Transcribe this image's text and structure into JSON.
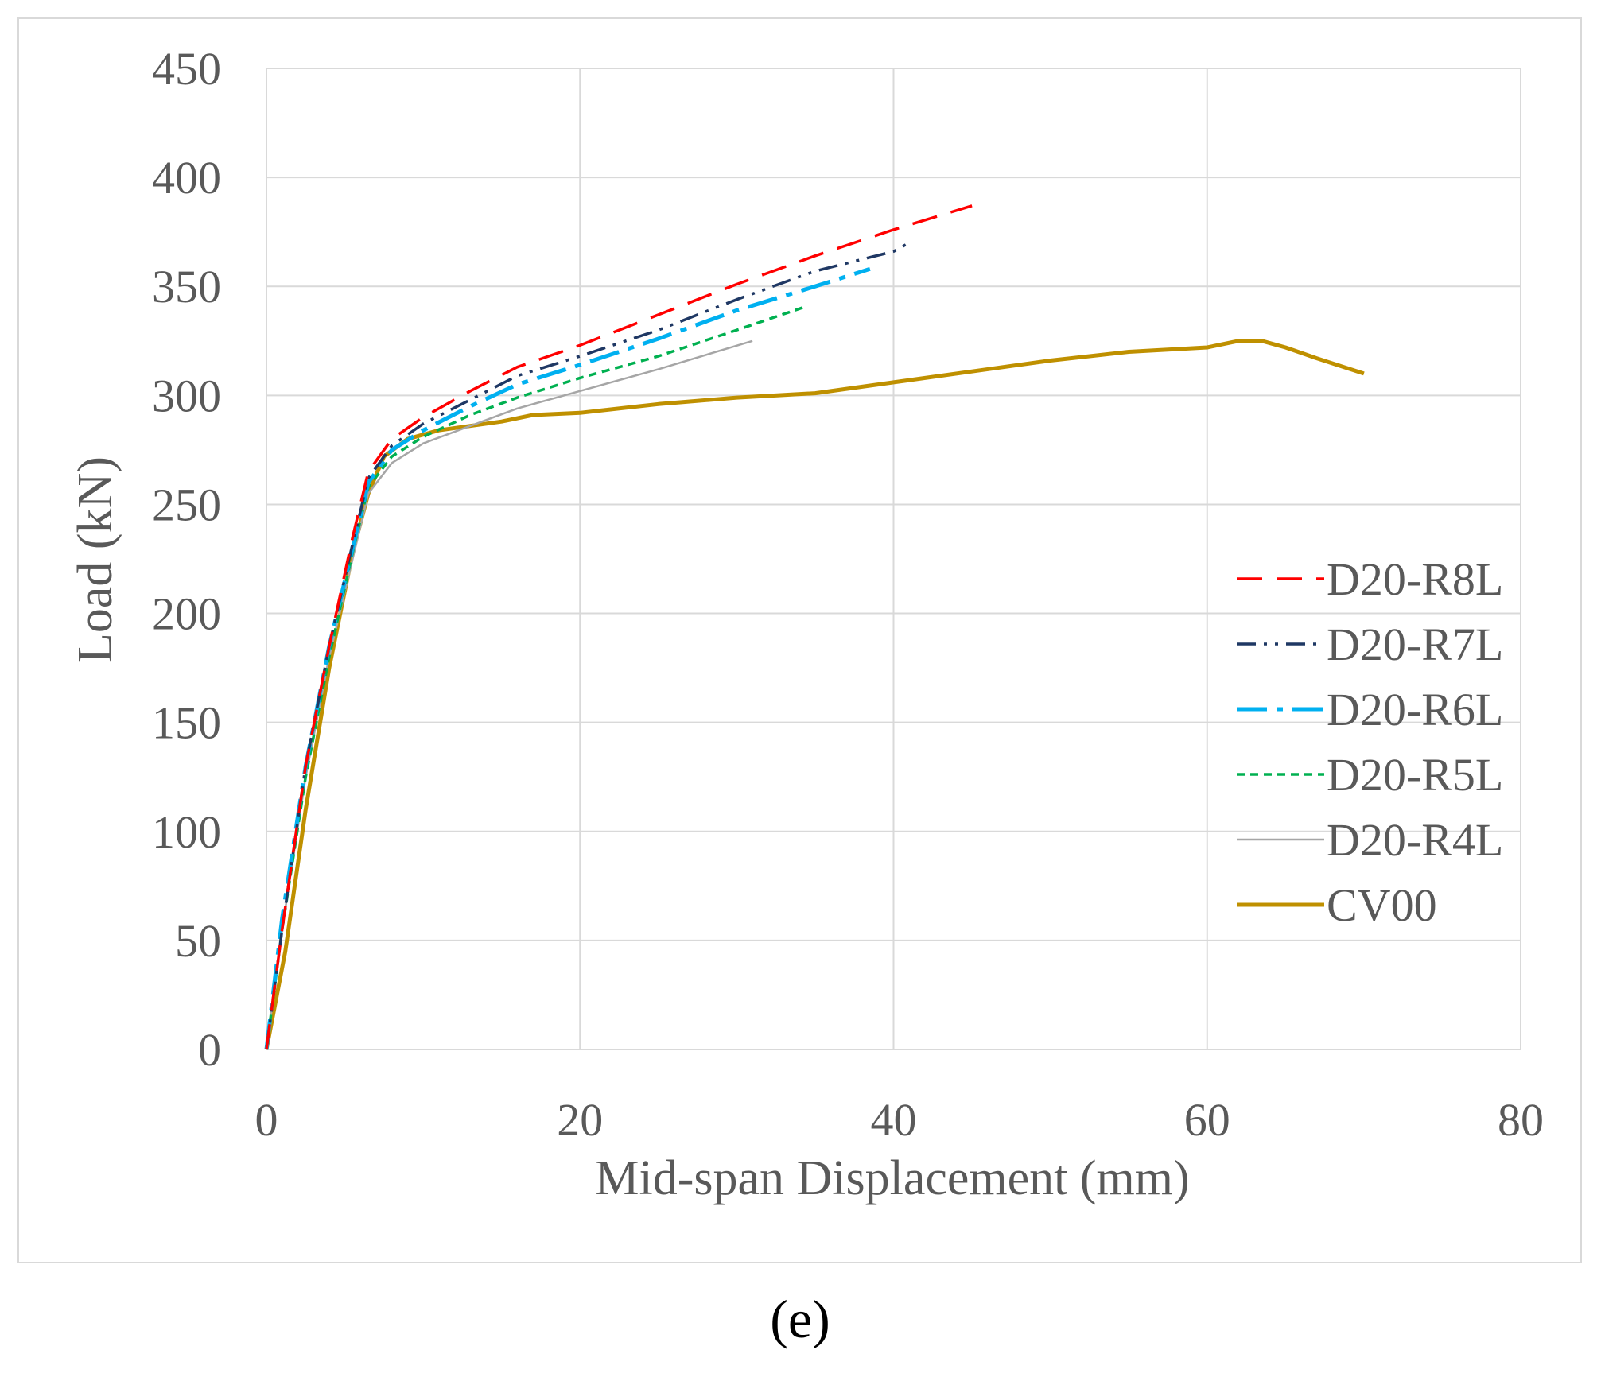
{
  "chart_data": {
    "type": "line",
    "title": "",
    "xlabel": "Mid-span Displacement (mm)",
    "ylabel": "Load (kN)",
    "xlim": [
      0,
      80
    ],
    "ylim": [
      0,
      450
    ],
    "xticks": [
      0,
      20,
      40,
      60,
      80
    ],
    "yticks": [
      0,
      50,
      100,
      150,
      200,
      250,
      300,
      350,
      400,
      450
    ],
    "grid": true,
    "legend_position": "right",
    "caption": "(e)",
    "colors": {
      "grid": "#d9d9d9",
      "frame": "#d9d9d9",
      "text": "#595959"
    },
    "series": [
      {
        "name": "D20-R8L",
        "color": "#ff0000",
        "style": "long-dash",
        "x": [
          0,
          1,
          2.5,
          4,
          5.5,
          6.5,
          8,
          10,
          13,
          16,
          20,
          25,
          30,
          35,
          40,
          45
        ],
        "y": [
          0,
          55,
          130,
          185,
          235,
          265,
          280,
          290,
          302,
          313,
          323,
          337,
          351,
          364,
          376,
          387
        ]
      },
      {
        "name": "D20-R7L",
        "color": "#1f3864",
        "style": "dash-dot-dot",
        "x": [
          0,
          1,
          2.5,
          4,
          5.5,
          6.5,
          8,
          10,
          13,
          16,
          20,
          25,
          30,
          35,
          40,
          41
        ],
        "y": [
          0,
          55,
          130,
          185,
          232,
          262,
          277,
          287,
          298,
          309,
          318,
          330,
          344,
          357,
          366,
          370
        ]
      },
      {
        "name": "D20-R6L",
        "color": "#00b0f0",
        "style": "dash-dot",
        "x": [
          0,
          1,
          2.5,
          4,
          5.5,
          6.5,
          8,
          10,
          13,
          16,
          20,
          25,
          30,
          35,
          38.5
        ],
        "y": [
          0,
          60,
          130,
          185,
          230,
          260,
          275,
          284,
          295,
          305,
          314,
          326,
          339,
          350,
          358
        ]
      },
      {
        "name": "D20-R5L",
        "color": "#00b050",
        "style": "short-dash",
        "x": [
          0,
          1,
          2.5,
          4,
          5.5,
          6.5,
          8,
          10,
          13,
          16,
          20,
          25,
          30,
          34.5
        ],
        "y": [
          0,
          55,
          125,
          180,
          228,
          258,
          272,
          281,
          291,
          299,
          308,
          318,
          330,
          341
        ]
      },
      {
        "name": "D20-R4L",
        "color": "#a6a6a6",
        "style": "solid-thin",
        "x": [
          0,
          1,
          2.5,
          4,
          5.5,
          6.5,
          8,
          10,
          13,
          16,
          20,
          25,
          31
        ],
        "y": [
          0,
          55,
          125,
          180,
          225,
          255,
          269,
          278,
          286,
          294,
          302,
          312,
          325
        ]
      },
      {
        "name": "CV00",
        "color": "#bf9000",
        "style": "solid-thick",
        "x": [
          0,
          1.2,
          2.5,
          4,
          5.5,
          6.5,
          7.5,
          9,
          11,
          13,
          15,
          17,
          20,
          25,
          30,
          35,
          40,
          45,
          50,
          55,
          60,
          62,
          63.5,
          65,
          67,
          70
        ],
        "y": [
          0,
          45,
          110,
          175,
          228,
          255,
          272,
          280,
          284,
          286,
          288,
          291,
          292,
          296,
          299,
          301,
          306,
          311,
          316,
          320,
          322,
          325,
          325,
          322,
          317,
          310
        ]
      }
    ]
  }
}
